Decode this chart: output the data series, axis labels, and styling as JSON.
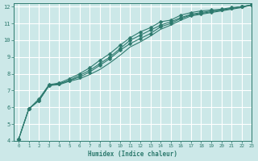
{
  "title": "",
  "xlabel": "Humidex (Indice chaleur)",
  "ylabel": "",
  "bg_color": "#cce8e8",
  "grid_color": "#ffffff",
  "line_color": "#2d7a6e",
  "xlim": [
    -0.5,
    23
  ],
  "ylim": [
    4,
    12.2
  ],
  "xticks": [
    0,
    1,
    2,
    3,
    4,
    5,
    6,
    7,
    8,
    9,
    10,
    11,
    12,
    13,
    14,
    15,
    16,
    17,
    18,
    19,
    20,
    21,
    22,
    23
  ],
  "yticks": [
    4,
    5,
    6,
    7,
    8,
    9,
    10,
    11,
    12
  ],
  "series": [
    {
      "x": [
        0,
        1,
        2,
        3,
        4,
        5,
        6,
        7,
        8,
        9,
        10,
        11,
        12,
        13,
        14,
        15,
        16,
        17,
        18,
        19,
        20,
        21,
        22,
        23
      ],
      "y": [
        4.1,
        5.9,
        6.4,
        7.3,
        7.4,
        7.6,
        7.8,
        8.1,
        8.5,
        8.9,
        9.4,
        9.8,
        10.1,
        10.4,
        10.8,
        11.0,
        11.3,
        11.5,
        11.6,
        11.7,
        11.8,
        11.9,
        12.0,
        12.1
      ],
      "marker": "D",
      "marker_size": 2.5
    },
    {
      "x": [
        0,
        1,
        2,
        3,
        4,
        5,
        6,
        7,
        8,
        9,
        10,
        11,
        12,
        13,
        14,
        15,
        16,
        17,
        18,
        19,
        20,
        21,
        22,
        23
      ],
      "y": [
        4.1,
        5.9,
        6.4,
        7.3,
        7.4,
        7.6,
        7.9,
        8.2,
        8.6,
        9.0,
        9.5,
        10.0,
        10.3,
        10.6,
        10.9,
        11.1,
        11.35,
        11.55,
        11.65,
        11.75,
        11.8,
        11.9,
        12.0,
        12.1
      ],
      "marker": "D",
      "marker_size": 2.5
    },
    {
      "x": [
        0,
        1,
        2,
        3,
        4,
        5,
        6,
        7,
        8,
        9,
        10,
        11,
        12,
        13,
        14,
        15,
        16,
        17,
        18,
        19,
        20,
        21,
        22,
        23
      ],
      "y": [
        4.1,
        5.9,
        6.5,
        7.35,
        7.45,
        7.7,
        8.0,
        8.35,
        8.8,
        9.2,
        9.7,
        10.15,
        10.5,
        10.75,
        11.1,
        11.2,
        11.5,
        11.65,
        11.75,
        11.8,
        11.85,
        11.95,
        12.0,
        12.1
      ],
      "marker": "D",
      "marker_size": 2.5
    },
    {
      "x": [
        2,
        3,
        4,
        5,
        6,
        7,
        8,
        9,
        10,
        11,
        12,
        13,
        14,
        15,
        16,
        17,
        18,
        19,
        20,
        21,
        22,
        23
      ],
      "y": [
        6.4,
        7.3,
        7.35,
        7.55,
        7.7,
        7.95,
        8.25,
        8.65,
        9.1,
        9.6,
        9.9,
        10.25,
        10.65,
        10.9,
        11.2,
        11.45,
        11.55,
        11.65,
        11.75,
        11.85,
        11.95,
        12.1
      ],
      "marker": null,
      "marker_size": 0
    }
  ]
}
